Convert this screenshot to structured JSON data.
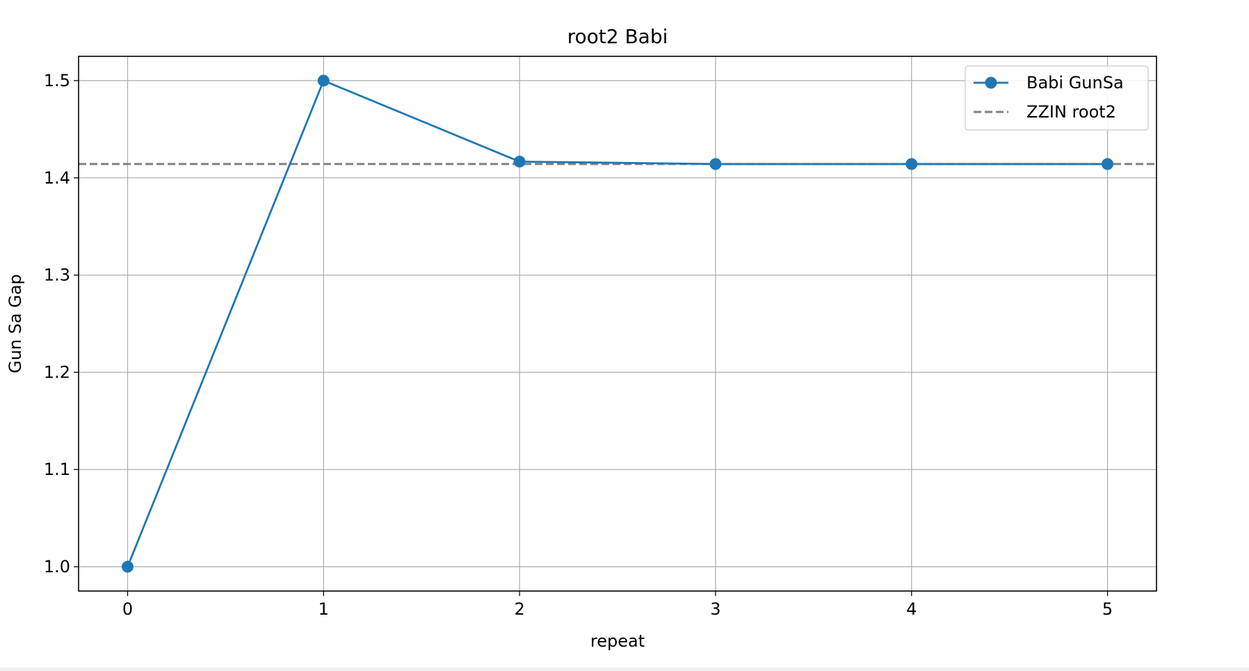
{
  "chart_data": {
    "type": "line",
    "title": "root2 Babi",
    "xlabel": "repeat",
    "ylabel": "Gun Sa Gap",
    "xlim": [
      -0.25,
      5.25
    ],
    "ylim": [
      0.975,
      1.525
    ],
    "xticks": [
      0,
      1,
      2,
      3,
      4,
      5
    ],
    "xtick_labels": [
      "0",
      "1",
      "2",
      "3",
      "4",
      "5"
    ],
    "yticks": [
      1.0,
      1.1,
      1.2,
      1.3,
      1.4,
      1.5
    ],
    "ytick_labels": [
      "1.0",
      "1.1",
      "1.2",
      "1.3",
      "1.4",
      "1.5"
    ],
    "grid": true,
    "legend_position": "top-right",
    "series": [
      {
        "name": "Babi GunSa",
        "x": [
          0,
          1,
          2,
          3,
          4,
          5
        ],
        "values": [
          1.0,
          1.5,
          1.4167,
          1.4142,
          1.4142,
          1.4142
        ],
        "color": "#1f77b4",
        "style": "solid",
        "marker": "circle"
      }
    ],
    "reference_lines": [
      {
        "name": "ZZIN root2",
        "y": 1.4142,
        "color": "#808080",
        "style": "dashed"
      }
    ]
  }
}
